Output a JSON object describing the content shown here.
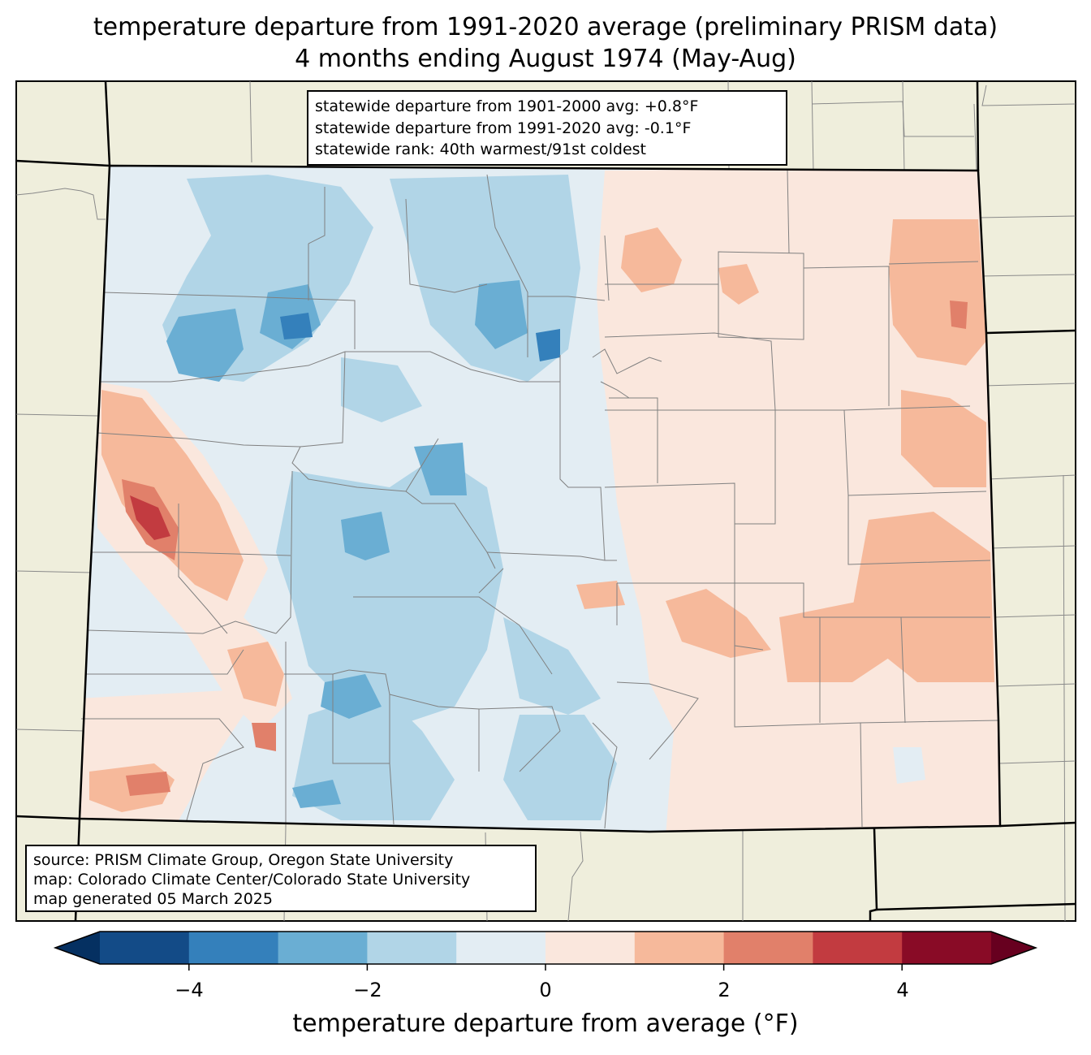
{
  "title_line1": "temperature departure from 1991-2020 average (preliminary PRISM data)",
  "title_line2": "4 months ending August 1974 (May-Aug)",
  "stats": {
    "line1": "statewide departure from 1901-2000 avg: +0.8°F",
    "line2": "statewide departure from 1991-2020 avg: -0.1°F",
    "line3": "statewide rank: 40th warmest/91st coldest"
  },
  "credits": {
    "line1": "source: PRISM Climate Group, Oregon State University",
    "line2": "map: Colorado Climate Center/Colorado State University",
    "line3": "map generated 05 March 2025"
  },
  "colorbar": {
    "label": "temperature departure from average (°F)",
    "ticks": [
      "−4",
      "−2",
      "0",
      "2",
      "4"
    ],
    "bins": [
      {
        "min": -5,
        "max": -4,
        "color": "#134b87"
      },
      {
        "min": -4,
        "max": -3,
        "color": "#3480bb"
      },
      {
        "min": -3,
        "max": -2,
        "color": "#6aaed3"
      },
      {
        "min": -2,
        "max": -1,
        "color": "#b1d5e7"
      },
      {
        "min": -1,
        "max": 0,
        "color": "#e3edf3"
      },
      {
        "min": 0,
        "max": 1,
        "color": "#fae7dd"
      },
      {
        "min": 1,
        "max": 2,
        "color": "#f6b99b"
      },
      {
        "min": 2,
        "max": 3,
        "color": "#e1806a"
      },
      {
        "min": 3,
        "max": 4,
        "color": "#c23b40"
      },
      {
        "min": 4,
        "max": 5,
        "color": "#890b26"
      }
    ],
    "extend_low_color": "#053061",
    "extend_high_color": "#67001f"
  },
  "colors": {
    "background_land": "#efeedc",
    "county_lines": "#808080",
    "state_border": "#000000"
  }
}
